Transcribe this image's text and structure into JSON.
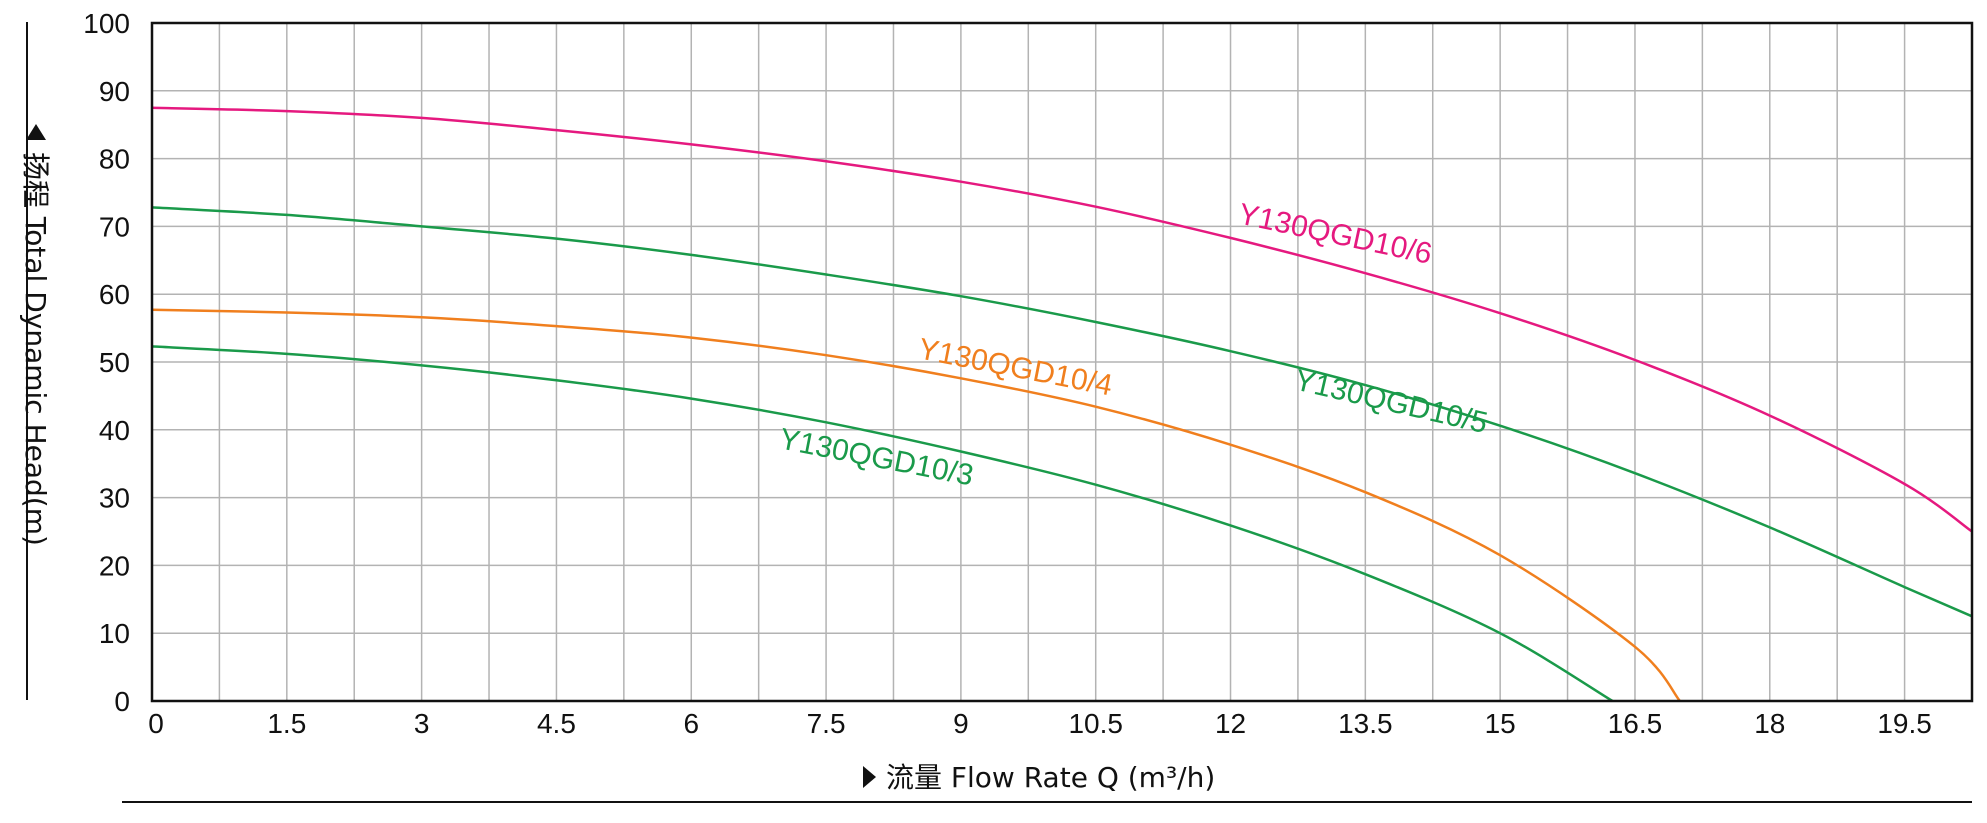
{
  "chart_data": {
    "type": "line",
    "title": "",
    "xlabel": "流量 Flow Rate Q (m³/h)",
    "ylabel": "扬程 Total Dynamic Head(m)",
    "xlim": [
      0,
      20.25
    ],
    "ylim": [
      0,
      100
    ],
    "x_ticks": [
      "0",
      "1.5",
      "3",
      "4.5",
      "6",
      "7.5",
      "9",
      "10.5",
      "12",
      "13.5",
      "15",
      "16.5",
      "18",
      "19.5"
    ],
    "y_ticks": [
      "0",
      "10",
      "20",
      "30",
      "40",
      "50",
      "60",
      "70",
      "80",
      "90",
      "100"
    ],
    "grid": true,
    "series": [
      {
        "name": "Y130QGD10/6",
        "color": "#e5197f",
        "x": [
          0,
          1.5,
          3,
          4.5,
          6,
          7.5,
          9,
          10.5,
          12,
          13.5,
          15,
          16.5,
          18,
          19.5,
          20.25
        ],
        "y": [
          87.5,
          87.0,
          86.0,
          84.2,
          82.1,
          79.6,
          76.6,
          72.9,
          68.3,
          63.1,
          57.2,
          50.3,
          42.1,
          32.0,
          25.0
        ]
      },
      {
        "name": "Y130QGD10/5",
        "color": "#1a9a4a",
        "x": [
          0,
          1.5,
          3,
          4.5,
          6,
          7.5,
          9,
          10.5,
          12,
          13.5,
          15,
          16.5,
          18,
          19.5,
          20.25
        ],
        "y": [
          72.8,
          71.7,
          70.0,
          68.2,
          65.8,
          62.9,
          59.7,
          55.9,
          51.6,
          46.6,
          40.6,
          33.6,
          25.6,
          16.8,
          12.5
        ]
      },
      {
        "name": "Y130QGD10/4",
        "color": "#f07f1e",
        "x": [
          0,
          1.5,
          3,
          4.5,
          6,
          7.5,
          9,
          10.5,
          12,
          13.5,
          15,
          16.5,
          17.0
        ],
        "y": [
          57.7,
          57.3,
          56.6,
          55.3,
          53.6,
          51.0,
          47.6,
          43.4,
          37.8,
          30.8,
          21.5,
          8.0,
          0
        ]
      },
      {
        "name": "Y130QGD10/3",
        "color": "#1a9a4a",
        "x": [
          0,
          1.5,
          3,
          4.5,
          6,
          7.5,
          9,
          10.5,
          12,
          13.5,
          15,
          16.25
        ],
        "y": [
          52.3,
          51.2,
          49.5,
          47.3,
          44.6,
          41.1,
          36.8,
          31.9,
          25.9,
          18.7,
          10.0,
          0
        ]
      }
    ]
  }
}
